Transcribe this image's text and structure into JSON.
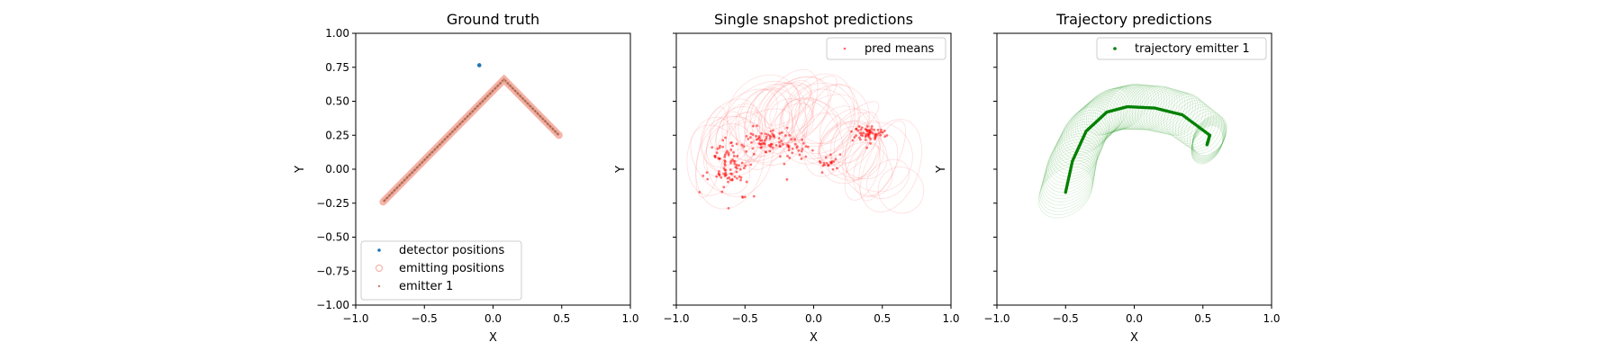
{
  "chart_data": [
    {
      "type": "scatter",
      "title": "Ground truth",
      "xlabel": "X",
      "ylabel": "Y",
      "xlim": [
        -1.0,
        1.0
      ],
      "ylim": [
        -1.0,
        1.0
      ],
      "xticks": [
        "−1.0",
        "−0.5",
        "0.0",
        "0.5",
        "1.0"
      ],
      "yticks": [
        "1.00",
        "0.75",
        "0.50",
        "0.25",
        "0.00",
        "−0.25",
        "−0.50",
        "−0.75",
        "−1.00"
      ],
      "legend_position": "lower-left",
      "series": [
        {
          "name": "detector positions",
          "color": "#1f77b4",
          "points": [
            [
              -0.1,
              0.765
            ]
          ]
        },
        {
          "name": "emitting positions",
          "color": "#f7b8ad",
          "path": [
            [
              -0.8,
              -0.24
            ],
            [
              0.08,
              0.66
            ],
            [
              0.48,
              0.25
            ]
          ]
        },
        {
          "name": "emitter 1",
          "color": "#c9826b",
          "path": [
            [
              -0.8,
              -0.24
            ],
            [
              0.08,
              0.66
            ],
            [
              0.48,
              0.25
            ]
          ]
        }
      ]
    },
    {
      "type": "scatter",
      "title": "Single snapshot predictions",
      "xlabel": "X",
      "ylabel": "Y",
      "xlim": [
        -1.0,
        1.0
      ],
      "ylim": [
        -1.0,
        1.0
      ],
      "xticks": [
        "−1.0",
        "−0.5",
        "0.0",
        "0.5",
        "1.0"
      ],
      "legend_position": "upper-right",
      "series": [
        {
          "name": "pred means",
          "color": "#ff0000",
          "clusters": [
            {
              "cx": -0.62,
              "cy": 0.02,
              "rx": 0.12,
              "ry": 0.18,
              "n": 90
            },
            {
              "cx": -0.35,
              "cy": 0.22,
              "rx": 0.12,
              "ry": 0.07,
              "n": 60
            },
            {
              "cx": -0.12,
              "cy": 0.15,
              "rx": 0.1,
              "ry": 0.08,
              "n": 30
            },
            {
              "cx": 0.12,
              "cy": 0.05,
              "rx": 0.1,
              "ry": 0.05,
              "n": 20
            },
            {
              "cx": 0.4,
              "cy": 0.26,
              "rx": 0.1,
              "ry": 0.05,
              "n": 60
            }
          ]
        }
      ]
    },
    {
      "type": "line",
      "title": "Trajectory predictions",
      "xlabel": "X",
      "ylabel": "Y",
      "xlim": [
        -1.0,
        1.0
      ],
      "ylim": [
        -1.0,
        1.0
      ],
      "xticks": [
        "−1.0",
        "−0.5",
        "0.0",
        "0.5",
        "1.0"
      ],
      "legend_position": "upper-right",
      "series": [
        {
          "name": "trajectory emitter 1",
          "color": "#008000",
          "path": [
            [
              -0.5,
              -0.17
            ],
            [
              -0.45,
              0.06
            ],
            [
              -0.35,
              0.28
            ],
            [
              -0.2,
              0.42
            ],
            [
              -0.05,
              0.46
            ],
            [
              0.15,
              0.45
            ],
            [
              0.35,
              0.4
            ],
            [
              0.55,
              0.25
            ],
            [
              0.53,
              0.18
            ]
          ]
        }
      ]
    }
  ]
}
